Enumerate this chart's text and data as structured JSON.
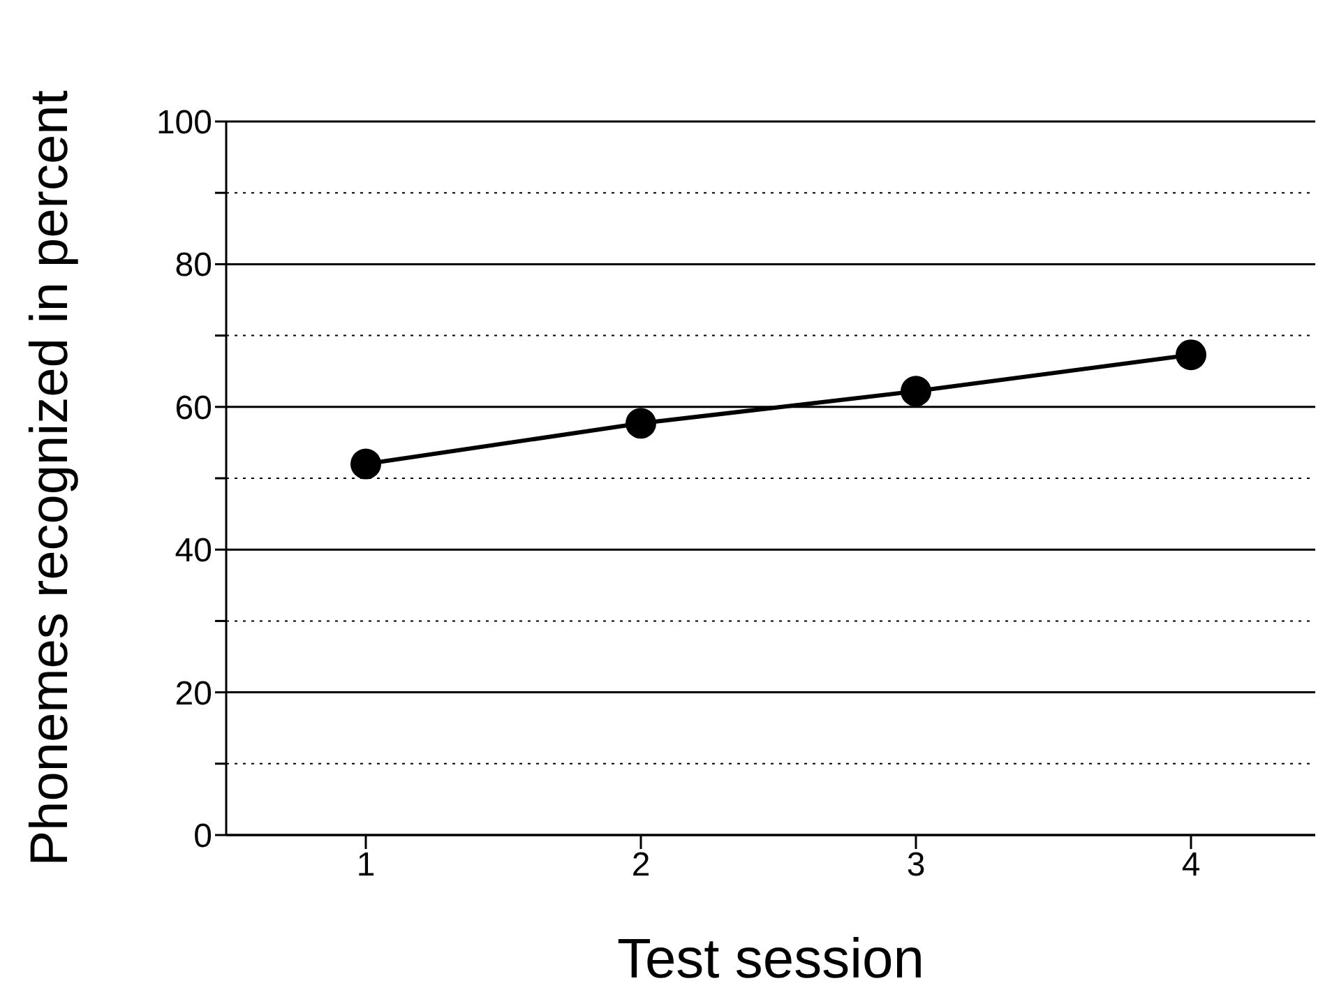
{
  "chart_data": {
    "type": "line",
    "xlabel": "Test session",
    "ylabel": "Phonemes recognized in percent",
    "categories": [
      "1",
      "2",
      "3",
      "4"
    ],
    "series": [
      {
        "color": "#000000",
        "values": [
          52,
          57.7,
          62.2,
          67.3
        ]
      }
    ],
    "ylim": [
      0,
      100
    ],
    "yticks": [
      0,
      {
        "value": 10,
        "label": null
      },
      20,
      {
        "value": 30,
        "label": null
      },
      40,
      {
        "value": 50,
        "label": null
      },
      60,
      {
        "value": 70,
        "label": null
      },
      80,
      {
        "value": 90,
        "label": null
      },
      100
    ],
    "grid": "y",
    "marker": "circle",
    "line_style": "solid"
  }
}
